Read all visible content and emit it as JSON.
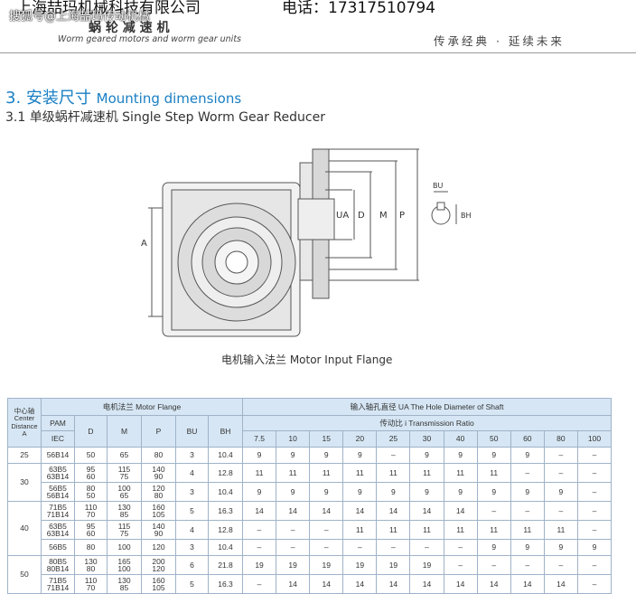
{
  "header": {
    "company": "上海喆玛机械科技有限公司",
    "phone": "电话：17317510794",
    "watermark": "搜狐号@上海喆玛传动机械",
    "product_cn": "蜗 轮 减 速 机",
    "product_en": "Worm geared motors and worm gear units",
    "slogan": "传承经典 · 延续未来"
  },
  "section": {
    "title_num": "3. 安装尺寸",
    "title_en": "Mounting dimensions",
    "subtitle": "3.1 单级蜗杆减速机 Single Step Worm Gear Reducer"
  },
  "diagram": {
    "labels": {
      "a": "A",
      "ua": "UA",
      "d": "D",
      "m": "M",
      "p": "P",
      "bu": "BU",
      "bh": "BH"
    },
    "caption": "电机输入法兰 Motor Input Flange"
  },
  "table": {
    "head": {
      "distance": [
        "中心轴",
        "Center",
        "Distance",
        "A"
      ],
      "flange": "电机法兰 Motor Flange",
      "shaft": "输入轴孔直径 UA The Hole Diameter of Shaft",
      "pam": "PAM",
      "iec": "IEC",
      "d": "D",
      "m": "M",
      "p": "P",
      "bu": "BU",
      "bh": "BH",
      "ratio": "传动比 i Transmission Ratio"
    },
    "ratios": [
      "7.5",
      "10",
      "15",
      "20",
      "25",
      "30",
      "40",
      "50",
      "60",
      "80",
      "100"
    ],
    "groups": [
      {
        "distance": "25",
        "rows": [
          {
            "pam": [
              "56B14"
            ],
            "d": [
              "50"
            ],
            "m": [
              "65"
            ],
            "p": [
              "80"
            ],
            "bu": "3",
            "bh": "10.4",
            "ua": [
              "9",
              "9",
              "9",
              "9",
              "–",
              "9",
              "9",
              "9",
              "9",
              "–",
              "–"
            ]
          }
        ]
      },
      {
        "distance": "30",
        "rows": [
          {
            "pam": [
              "63B5",
              "63B14"
            ],
            "d": [
              "95",
              "60"
            ],
            "m": [
              "115",
              "75"
            ],
            "p": [
              "140",
              "90"
            ],
            "bu": "4",
            "bh": "12.8",
            "ua": [
              "11",
              "11",
              "11",
              "11",
              "11",
              "11",
              "11",
              "11",
              "–",
              "–",
              "–"
            ]
          },
          {
            "pam": [
              "56B5",
              "56B14"
            ],
            "d": [
              "80",
              "50"
            ],
            "m": [
              "100",
              "65"
            ],
            "p": [
              "120",
              "80"
            ],
            "bu": "3",
            "bh": "10.4",
            "ua": [
              "9",
              "9",
              "9",
              "9",
              "9",
              "9",
              "9",
              "9",
              "9",
              "9",
              "–"
            ]
          }
        ]
      },
      {
        "distance": "40",
        "rows": [
          {
            "pam": [
              "71B5",
              "71B14"
            ],
            "d": [
              "110",
              "70"
            ],
            "m": [
              "130",
              "85"
            ],
            "p": [
              "160",
              "105"
            ],
            "bu": "5",
            "bh": "16.3",
            "ua": [
              "14",
              "14",
              "14",
              "14",
              "14",
              "14",
              "14",
              "–",
              "–",
              "–",
              "–"
            ]
          },
          {
            "pam": [
              "63B5",
              "63B14"
            ],
            "d": [
              "95",
              "60"
            ],
            "m": [
              "115",
              "75"
            ],
            "p": [
              "140",
              "90"
            ],
            "bu": "4",
            "bh": "12.8",
            "ua": [
              "–",
              "–",
              "–",
              "11",
              "11",
              "11",
              "11",
              "11",
              "11",
              "11",
              "–"
            ]
          },
          {
            "pam": [
              "56B5"
            ],
            "d": [
              "80"
            ],
            "m": [
              "100"
            ],
            "p": [
              "120"
            ],
            "bu": "3",
            "bh": "10.4",
            "ua": [
              "–",
              "–",
              "–",
              "–",
              "–",
              "–",
              "–",
              "9",
              "9",
              "9",
              "9"
            ]
          }
        ]
      },
      {
        "distance": "50",
        "rows": [
          {
            "pam": [
              "80B5",
              "80B14"
            ],
            "d": [
              "130",
              "80"
            ],
            "m": [
              "165",
              "100"
            ],
            "p": [
              "200",
              "120"
            ],
            "bu": "6",
            "bh": "21.8",
            "ua": [
              "19",
              "19",
              "19",
              "19",
              "19",
              "19",
              "–",
              "–",
              "–",
              "–",
              "–"
            ]
          },
          {
            "pam": [
              "71B5",
              "71B14"
            ],
            "d": [
              "110",
              "70"
            ],
            "m": [
              "130",
              "85"
            ],
            "p": [
              "160",
              "105"
            ],
            "bu": "5",
            "bh": "16.3",
            "ua": [
              "–",
              "14",
              "14",
              "14",
              "14",
              "14",
              "14",
              "14",
              "14",
              "14",
              "–"
            ]
          }
        ]
      }
    ]
  }
}
